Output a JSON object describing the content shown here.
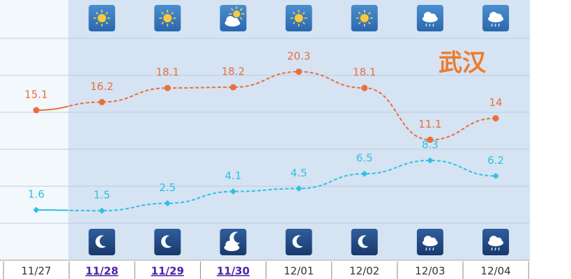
{
  "chart_data": {
    "type": "line",
    "title": "武汉",
    "categories": [
      "11/27",
      "11/28",
      "11/29",
      "11/30",
      "12/01",
      "12/02",
      "12/03",
      "12/04"
    ],
    "series": [
      {
        "color": "#e8703a",
        "values": [
          15.1,
          16.2,
          18.1,
          18.2,
          20.3,
          18.1,
          11.1,
          14
        ]
      },
      {
        "color": "#2ec1e2",
        "values": [
          1.6,
          1.5,
          2.5,
          4.1,
          4.5,
          6.5,
          8.3,
          6.2
        ]
      }
    ],
    "ylim": [
      -5,
      30
    ]
  }
}
